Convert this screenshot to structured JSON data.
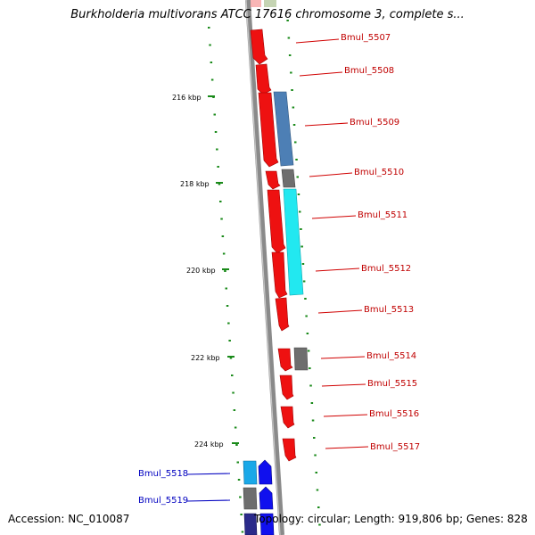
{
  "title": "Burkholderia multivorans ATCC 17616 chromosome 3, complete s...",
  "footer": {
    "accession": "Accession: NC_010087",
    "summary": "Topology: circular; Length: 919,806 bp; Genes: 828"
  },
  "ruler": {
    "unit": "kbp",
    "ticks": [
      {
        "kbp": 216,
        "label": "216 kbp"
      },
      {
        "kbp": 218,
        "label": "218 kbp"
      },
      {
        "kbp": 220,
        "label": "220 kbp"
      },
      {
        "kbp": 222,
        "label": "222 kbp"
      },
      {
        "kbp": 224,
        "label": "224 kbp"
      }
    ]
  },
  "colors": {
    "backbone": "#8a8a8a",
    "ticks": "#1a8a1a",
    "red_gene": "#ee1111",
    "steelblue_gene": "#4d7fb5",
    "cyan_gene": "#22e8f0",
    "gray_gene": "#6e6e6e",
    "blue_gene": "#1010ee",
    "skyblue_gene": "#1aa8e8",
    "label_red": "#c00000",
    "label_blue": "#0000c0"
  },
  "genes": [
    {
      "id": "Bmul_5507",
      "label": "Bmul_5507",
      "color": "red",
      "side": "right"
    },
    {
      "id": "Bmul_5508",
      "label": "Bmul_5508",
      "color": "red",
      "side": "right"
    },
    {
      "id": "Bmul_5509",
      "label": "Bmul_5509",
      "color": "red",
      "side": "right"
    },
    {
      "id": "Bmul_5510",
      "label": "Bmul_5510",
      "color": "red",
      "side": "right"
    },
    {
      "id": "Bmul_5511",
      "label": "Bmul_5511",
      "color": "red",
      "side": "right"
    },
    {
      "id": "Bmul_5512",
      "label": "Bmul_5512",
      "color": "red",
      "side": "right"
    },
    {
      "id": "Bmul_5513",
      "label": "Bmul_5513",
      "color": "red",
      "side": "right"
    },
    {
      "id": "Bmul_5514",
      "label": "Bmul_5514",
      "color": "red",
      "side": "right"
    },
    {
      "id": "Bmul_5515",
      "label": "Bmul_5515",
      "color": "red",
      "side": "right"
    },
    {
      "id": "Bmul_5516",
      "label": "Bmul_5516",
      "color": "red",
      "side": "right"
    },
    {
      "id": "Bmul_5517",
      "label": "Bmul_5517",
      "color": "red",
      "side": "right"
    },
    {
      "id": "Bmul_5518",
      "label": "Bmul_5518",
      "color": "blue",
      "side": "left"
    },
    {
      "id": "Bmul_5519",
      "label": "Bmul_5519",
      "color": "blue",
      "side": "left"
    }
  ]
}
